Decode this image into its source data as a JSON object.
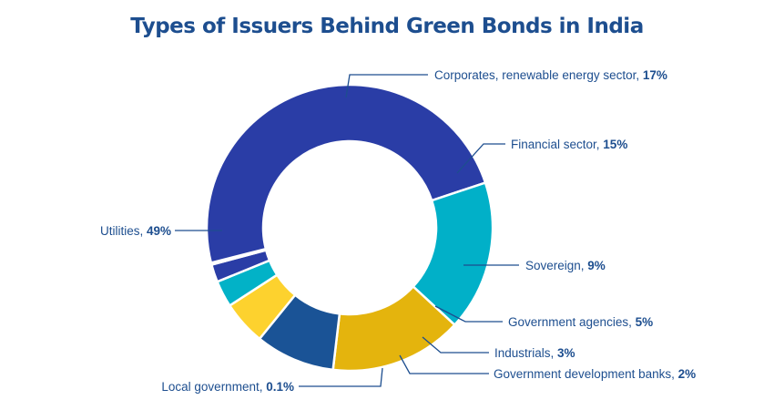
{
  "chart_data": {
    "type": "pie",
    "title": "Types of Issuers Behind Green Bonds in India",
    "slices": [
      {
        "label": "Utilities",
        "value": 49,
        "value_label": "49%",
        "color": "#2a3da6"
      },
      {
        "label": "Corporates, renewable energy sector",
        "value": 17,
        "value_label": "17%",
        "color": "#01b0c8"
      },
      {
        "label": "Financial sector",
        "value": 15,
        "value_label": "15%",
        "color": "#e4b40d"
      },
      {
        "label": "Sovereign",
        "value": 9,
        "value_label": "9%",
        "color": "#1a5396"
      },
      {
        "label": "Government agencies",
        "value": 5,
        "value_label": "5%",
        "color": "#fdd22e"
      },
      {
        "label": "Industrials",
        "value": 3,
        "value_label": "3%",
        "color": "#02b2c7"
      },
      {
        "label": "Government development banks",
        "value": 2,
        "value_label": "2%",
        "color": "#2a3da6"
      },
      {
        "label": "Local government",
        "value": 0.1,
        "value_label": "0.1%",
        "color": "#2a3da6"
      }
    ],
    "label_color": "#1d4e8f",
    "legend": "none"
  }
}
